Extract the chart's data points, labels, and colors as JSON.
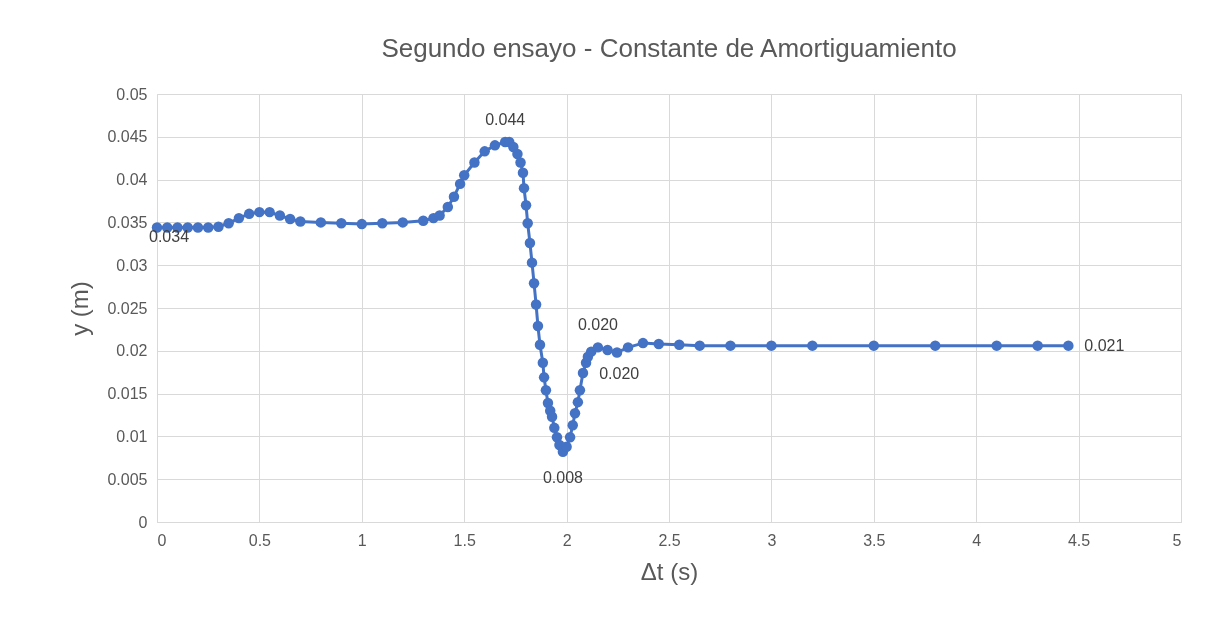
{
  "chart_data": {
    "type": "line",
    "title": "Segundo ensayo - Constante de Amortiguamiento",
    "xlabel": "Δt (s)",
    "ylabel": "y (m)",
    "x": [
      0,
      0.05,
      0.1,
      0.15,
      0.2,
      0.25,
      0.3,
      0.35,
      0.4,
      0.45,
      0.5,
      0.55,
      0.6,
      0.65,
      0.7,
      0.8,
      0.9,
      1.0,
      1.1,
      1.2,
      1.3,
      1.35,
      1.38,
      1.42,
      1.45,
      1.48,
      1.5,
      1.55,
      1.6,
      1.65,
      1.7,
      1.72,
      1.74,
      1.76,
      1.775,
      1.787,
      1.792,
      1.802,
      1.81,
      1.821,
      1.831,
      1.841,
      1.851,
      1.86,
      1.87,
      1.884,
      1.89,
      1.899,
      1.909,
      1.92,
      1.929,
      1.94,
      1.953,
      1.965,
      1.982,
      2.0,
      2.017,
      2.03,
      2.041,
      2.055,
      2.065,
      2.08,
      2.095,
      2.104,
      2.12,
      2.153,
      2.2,
      2.246,
      2.3,
      2.373,
      2.45,
      2.55,
      2.65,
      2.8,
      3.0,
      3.2,
      3.5,
      3.8,
      4.1,
      4.3,
      4.45
    ],
    "series": [
      {
        "color": "#4472c4",
        "values": [
          0.0344,
          0.0344,
          0.0344,
          0.0344,
          0.0344,
          0.0344,
          0.0345,
          0.0349,
          0.0355,
          0.036,
          0.0362,
          0.0362,
          0.0358,
          0.0354,
          0.0351,
          0.035,
          0.0349,
          0.0348,
          0.0349,
          0.035,
          0.0352,
          0.0355,
          0.0358,
          0.0368,
          0.038,
          0.0395,
          0.0405,
          0.042,
          0.0433,
          0.044,
          0.0444,
          0.0444,
          0.0438,
          0.043,
          0.042,
          0.0408,
          0.039,
          0.037,
          0.0349,
          0.0326,
          0.0303,
          0.0279,
          0.0254,
          0.0229,
          0.0207,
          0.0186,
          0.0169,
          0.0154,
          0.0139,
          0.013,
          0.0123,
          0.011,
          0.0099,
          0.009,
          0.0082,
          0.0088,
          0.0099,
          0.0113,
          0.0127,
          0.014,
          0.0154,
          0.0174,
          0.0186,
          0.0193,
          0.0199,
          0.0204,
          0.0201,
          0.0198,
          0.0204,
          0.0209,
          0.0208,
          0.0207,
          0.0206,
          0.0206,
          0.0206,
          0.0206,
          0.0206,
          0.0206,
          0.0206,
          0.0206,
          0.0206
        ],
        "value_labels": [
          "0.034",
          null,
          null,
          null,
          null,
          null,
          null,
          null,
          null,
          null,
          null,
          null,
          null,
          null,
          null,
          null,
          null,
          null,
          null,
          null,
          null,
          null,
          null,
          null,
          null,
          null,
          null,
          null,
          null,
          null,
          "0.044",
          null,
          null,
          null,
          null,
          null,
          null,
          null,
          null,
          null,
          null,
          null,
          null,
          null,
          null,
          null,
          null,
          null,
          null,
          null,
          null,
          null,
          null,
          null,
          "0.008",
          null,
          null,
          null,
          null,
          null,
          null,
          null,
          null,
          null,
          "0.020",
          "0.020",
          null,
          null,
          null,
          null,
          null,
          null,
          null,
          null,
          null,
          null,
          null,
          null,
          null,
          null,
          "0.021"
        ]
      }
    ],
    "xlim": [
      0,
      5
    ],
    "xticks": [
      0,
      0.5,
      1,
      1.5,
      2,
      2.5,
      3,
      3.5,
      4,
      4.5,
      5
    ],
    "ylim": [
      0,
      0.05
    ],
    "yticks": [
      0,
      0.005,
      0.01,
      0.015,
      0.02,
      0.025,
      0.03,
      0.035,
      0.04,
      0.045,
      0.05
    ],
    "grid": true,
    "marker": "circle",
    "line_style": "solid"
  }
}
